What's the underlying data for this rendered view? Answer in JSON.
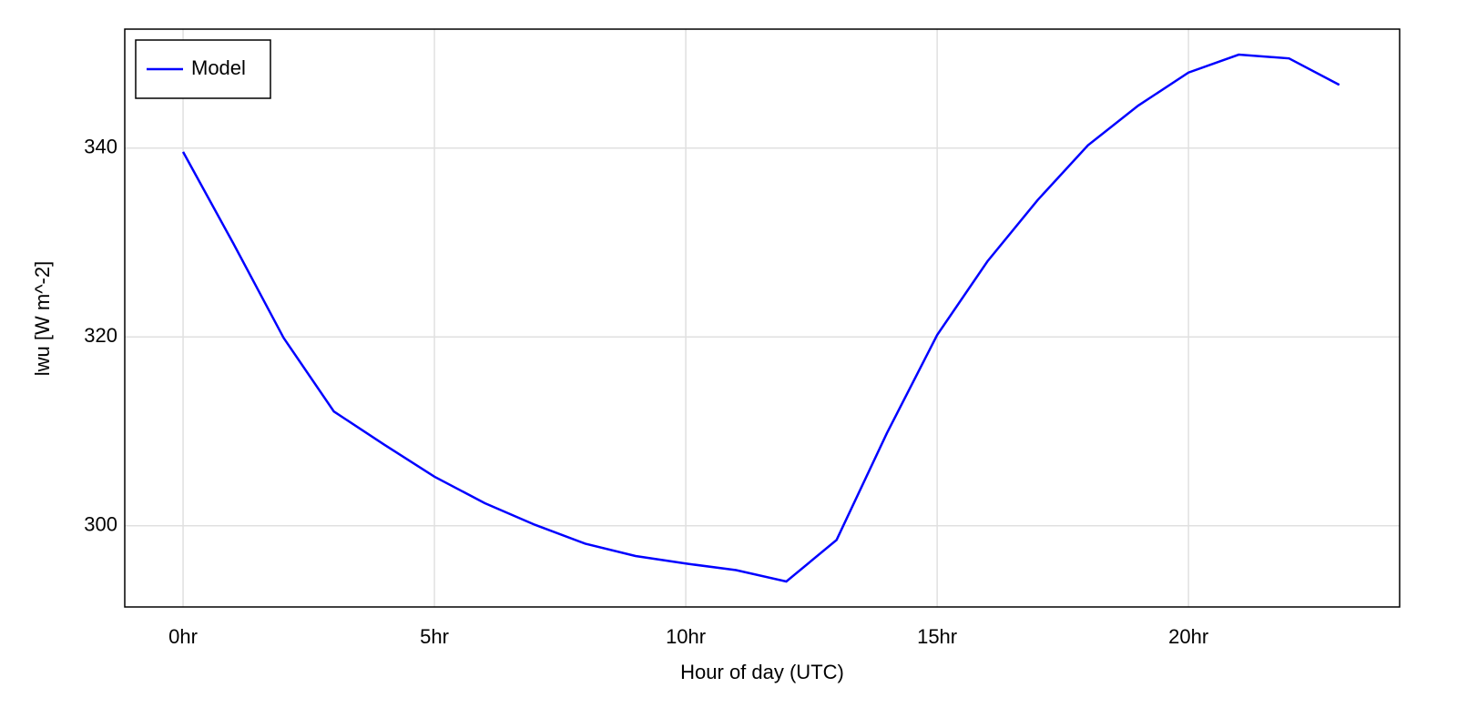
{
  "chart_data": {
    "type": "line",
    "x_label": "Hour of day (UTC)",
    "y_label": "lwu [W m^-2]",
    "x": [
      0,
      1,
      2,
      3,
      4,
      5,
      6,
      7,
      8,
      9,
      10,
      11,
      12,
      13,
      14,
      15,
      16,
      17,
      18,
      19,
      20,
      21,
      22,
      23
    ],
    "series": [
      {
        "name": "Model",
        "color": "#0000ff",
        "values": [
          339.6,
          329.9,
          319.9,
          312.1,
          308.6,
          305.2,
          302.4,
          300.1,
          298.1,
          296.8,
          296.0,
          295.3,
          294.1,
          298.5,
          309.8,
          320.2,
          328.0,
          334.5,
          340.3,
          344.5,
          348.0,
          349.9,
          349.5,
          346.7
        ]
      }
    ],
    "xlim": [
      -1.16,
      24.2
    ],
    "xticks": [
      {
        "value": 0,
        "label": "0hr"
      },
      {
        "value": 5,
        "label": "5hr"
      },
      {
        "value": 10,
        "label": "10hr"
      },
      {
        "value": 15,
        "label": "15hr"
      },
      {
        "value": 20,
        "label": "20hr"
      }
    ],
    "ylim": [
      291.4,
      352.6
    ],
    "yticks": [
      300,
      320,
      340
    ],
    "grid": true,
    "legend": "top-left"
  }
}
